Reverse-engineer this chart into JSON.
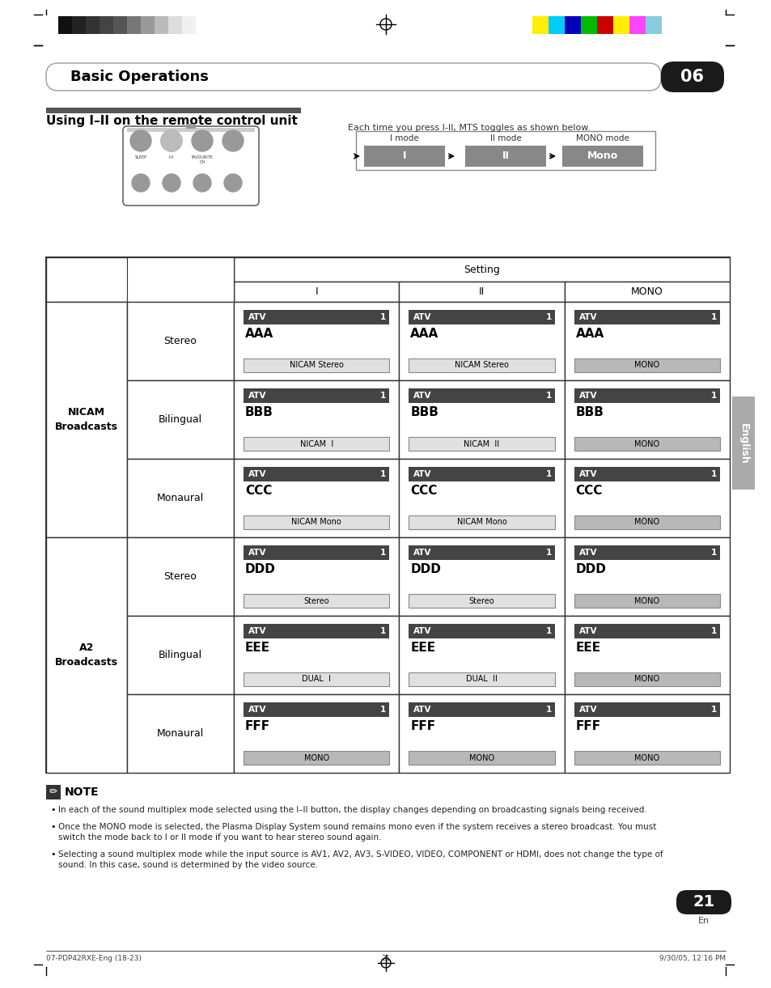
{
  "page_bg": "#ffffff",
  "title": "Basic Operations",
  "chapter_num": "06",
  "section_title": "Using I–II on the remote control unit",
  "subtitle_text": "Each time you press I-II, MTS toggles as shown below.",
  "mode_labels": [
    "I mode",
    "II mode",
    "MONO mode"
  ],
  "mode_values": [
    "I",
    "II",
    "Mono"
  ],
  "rows": [
    {
      "subgroup": "Stereo",
      "letter": "AAA",
      "badges": [
        "NICAM Stereo",
        "NICAM Stereo",
        "MONO"
      ]
    },
    {
      "subgroup": "Bilingual",
      "letter": "BBB",
      "badges": [
        "NICAM  I",
        "NICAM  II",
        "MONO"
      ]
    },
    {
      "subgroup": "Monaural",
      "letter": "CCC",
      "badges": [
        "NICAM Mono",
        "NICAM Mono",
        "MONO"
      ]
    },
    {
      "subgroup": "Stereo",
      "letter": "DDD",
      "badges": [
        "Stereo",
        "Stereo",
        "MONO"
      ]
    },
    {
      "subgroup": "Bilingual",
      "letter": "EEE",
      "badges": [
        "DUAL  I",
        "DUAL  II",
        "MONO"
      ]
    },
    {
      "subgroup": "Monaural",
      "letter": "FFF",
      "badges": [
        "MONO",
        "MONO",
        "MONO"
      ]
    }
  ],
  "note_lines": [
    "In each of the sound multiplex mode selected using the I–II button, the display changes depending on broadcasting signals being received.",
    "Once the MONO mode is selected, the Plasma Display System sound remains mono even if the system receives a stereo broadcast. You must\nswitch the mode back to I or II mode if you want to hear stereo sound again.",
    "Selecting a sound multiplex mode while the input source is AV1, AV2, AV3, S-VIDEO, VIDEO, COMPONENT or HDMI, does not change the type of\nsound. In this case, sound is determined by the video source."
  ],
  "footer_left": "07-PDP42RXE-Eng (18-23)",
  "footer_center": "21",
  "footer_right": "9/30/05, 12:16 PM",
  "grays": [
    "#111111",
    "#222222",
    "#333333",
    "#444444",
    "#555555",
    "#777777",
    "#999999",
    "#bbbbbb",
    "#dddddd",
    "#f0f0f0"
  ],
  "colors_bar": [
    "#ffee00",
    "#00ccff",
    "#0000bb",
    "#00bb00",
    "#cc0000",
    "#ffee00",
    "#ff44ff",
    "#88ccdd"
  ]
}
